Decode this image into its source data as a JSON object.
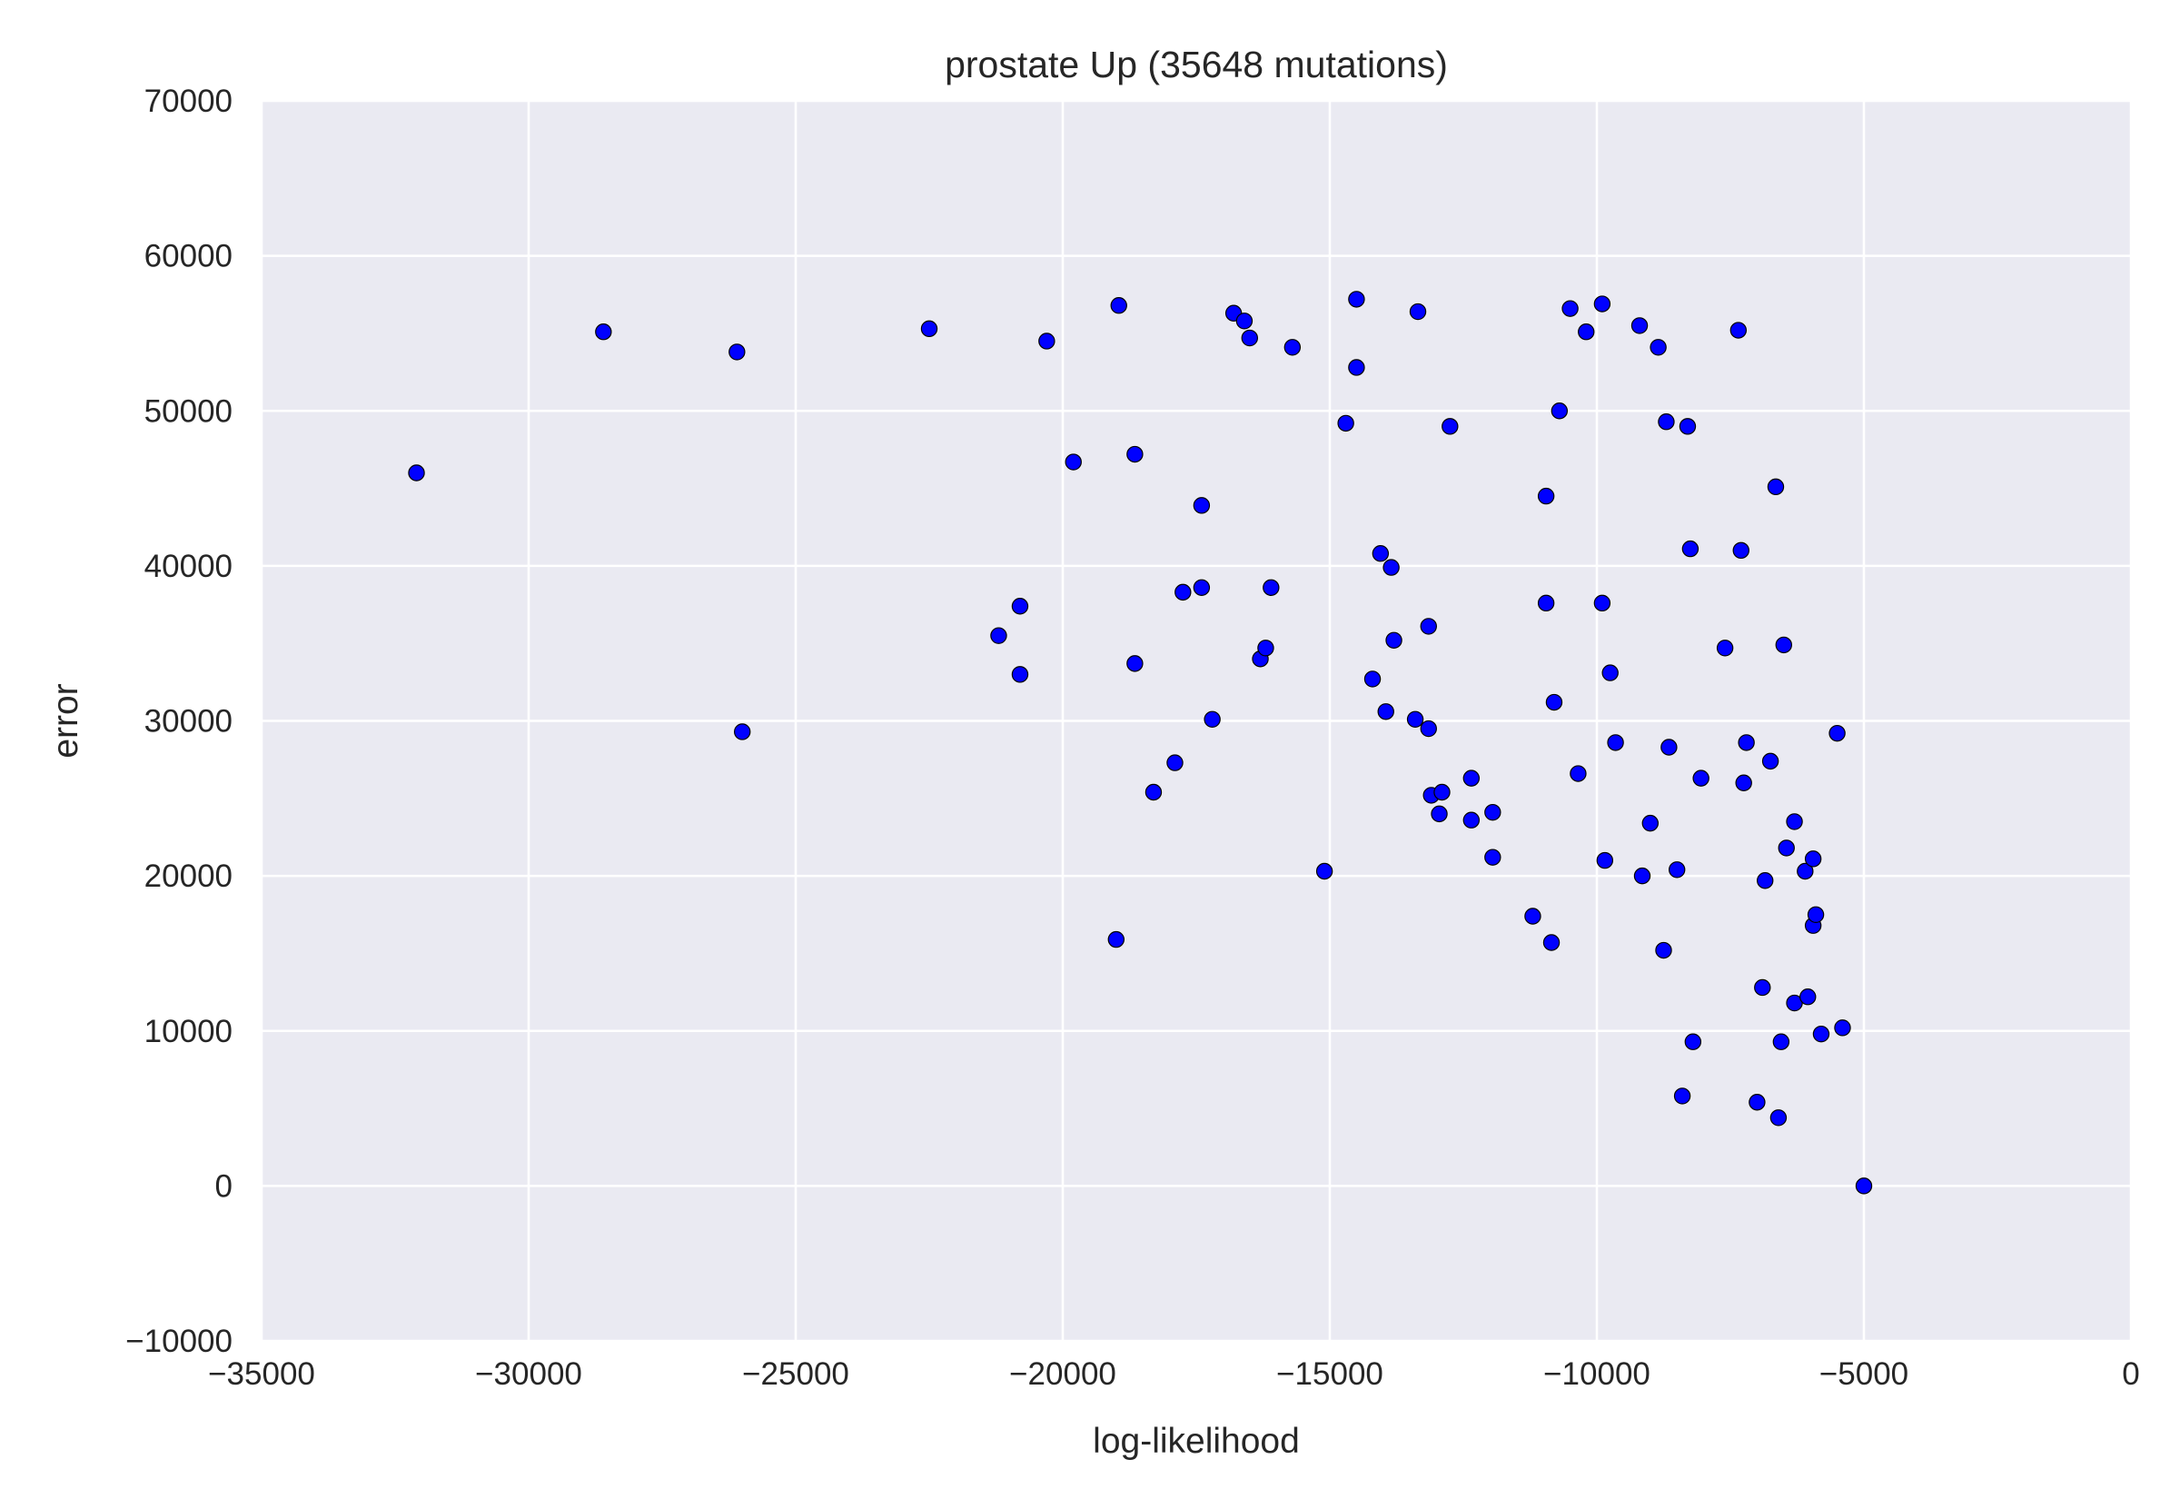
{
  "chart_data": {
    "type": "scatter",
    "title": "prostate Up (35648 mutations)",
    "xlabel": "log-likelihood",
    "ylabel": "error",
    "xlim": [
      -35000,
      0
    ],
    "ylim": [
      -10000,
      70000
    ],
    "xticks": [
      -35000,
      -30000,
      -25000,
      -20000,
      -15000,
      -10000,
      -5000,
      0
    ],
    "yticks": [
      -10000,
      0,
      10000,
      20000,
      30000,
      40000,
      50000,
      60000,
      70000
    ],
    "xtick_labels": [
      "−35000",
      "−30000",
      "−25000",
      "−20000",
      "−15000",
      "−10000",
      "−5000",
      "0"
    ],
    "ytick_labels": [
      "−10000",
      "0",
      "10000",
      "20000",
      "30000",
      "40000",
      "50000",
      "60000",
      "70000"
    ],
    "grid": true,
    "marker_color": "#0000ff",
    "background_color": "#eaeaf2",
    "x": [
      -32100,
      -28600,
      -26100,
      -26000,
      -22500,
      -21200,
      -20800,
      -20800,
      -20300,
      -19800,
      -19000,
      -18950,
      -18650,
      -18650,
      -18300,
      -17900,
      -17750,
      -17400,
      -17400,
      -17200,
      -16800,
      -16600,
      -16500,
      -16300,
      -16200,
      -16100,
      -15700,
      -15100,
      -14700,
      -14500,
      -14500,
      -14200,
      -14050,
      -13950,
      -13850,
      -13800,
      -13400,
      -13350,
      -13150,
      -13150,
      -13100,
      -12950,
      -12900,
      -12750,
      -12350,
      -12350,
      -11950,
      -11950,
      -11200,
      -10950,
      -10950,
      -10850,
      -10800,
      -10700,
      -10500,
      -10350,
      -10200,
      -9900,
      -9900,
      -9850,
      -9750,
      -9650,
      -9200,
      -9150,
      -9000,
      -8850,
      -8750,
      -8700,
      -8650,
      -8500,
      -8400,
      -8300,
      -8250,
      -8200,
      -8050,
      -7600,
      -7350,
      -7300,
      -7250,
      -7200,
      -7000,
      -6900,
      -6850,
      -6750,
      -6650,
      -6600,
      -6550,
      -6500,
      -6450,
      -6300,
      -6300,
      -6100,
      -6050,
      -5950,
      -5950,
      -5900,
      -5800,
      -5500,
      -5400,
      -5000
    ],
    "y": [
      46000,
      55100,
      53800,
      29300,
      55300,
      35500,
      37400,
      33000,
      54500,
      46700,
      15900,
      56800,
      47200,
      33700,
      25400,
      27300,
      38300,
      43900,
      38600,
      30100,
      56300,
      55800,
      54700,
      34000,
      34700,
      38600,
      54100,
      20300,
      49200,
      52800,
      57200,
      32700,
      40800,
      30600,
      39900,
      35200,
      30100,
      56400,
      29500,
      36100,
      25200,
      24000,
      25400,
      49000,
      26300,
      23600,
      24100,
      21200,
      17400,
      37600,
      44500,
      15700,
      31200,
      50000,
      56600,
      26600,
      55100,
      56900,
      37600,
      21000,
      33100,
      28600,
      55500,
      20000,
      23400,
      54100,
      15200,
      49300,
      28300,
      20400,
      5800,
      49000,
      41100,
      9300,
      26300,
      34700,
      55200,
      41000,
      26000,
      28600,
      5400,
      12800,
      19700,
      27400,
      45100,
      4400,
      9300,
      34900,
      21800,
      23500,
      11800,
      20300,
      12200,
      16800,
      21100,
      17500,
      9800,
      29200,
      10200,
      0
    ]
  }
}
